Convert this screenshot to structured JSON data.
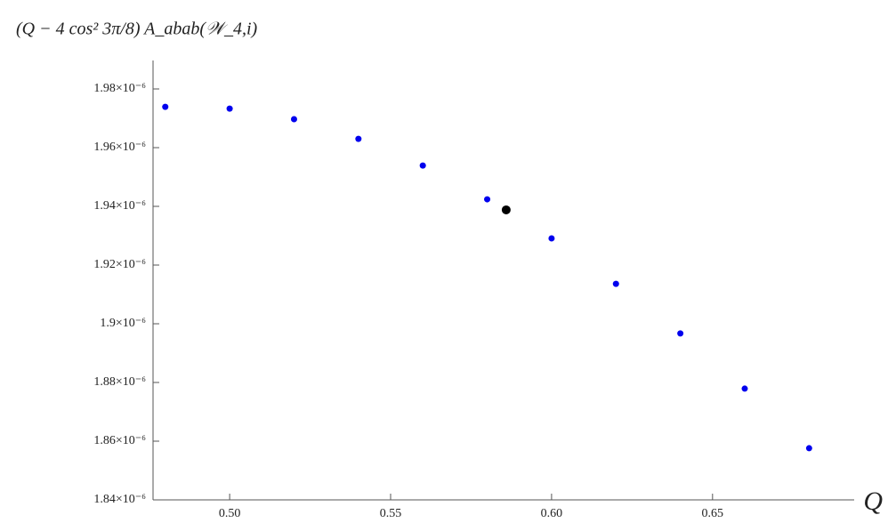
{
  "chart_data": {
    "type": "scatter",
    "y_label": "(Q − 4 cos² 3π/8) A_abab(𝒲_4,i)",
    "x_label": "Q",
    "xlim": [
      0.4762,
      0.694
    ],
    "ylim": [
      1.84e-06,
      1.9897e-06
    ],
    "xticks": [
      {
        "value": 0.5,
        "label": "0.50"
      },
      {
        "value": 0.55,
        "label": "0.55"
      },
      {
        "value": 0.6,
        "label": "0.60"
      },
      {
        "value": 0.65,
        "label": "0.65"
      }
    ],
    "yticks": [
      {
        "value": 1.84e-06,
        "label": "1.84×10⁻⁶"
      },
      {
        "value": 1.86e-06,
        "label": "1.86×10⁻⁶"
      },
      {
        "value": 1.88e-06,
        "label": "1.88×10⁻⁶"
      },
      {
        "value": 1.9e-06,
        "label": "1.9×10⁻⁶"
      },
      {
        "value": 1.92e-06,
        "label": "1.92×10⁻⁶"
      },
      {
        "value": 1.94e-06,
        "label": "1.94×10⁻⁶"
      },
      {
        "value": 1.96e-06,
        "label": "1.96×10⁻⁶"
      },
      {
        "value": 1.98e-06,
        "label": "1.98×10⁻⁶"
      }
    ],
    "series": [
      {
        "color": "#0000ee",
        "size": 3.5,
        "x": [
          0.48,
          0.5,
          0.52,
          0.54,
          0.56,
          0.58,
          0.6,
          0.62,
          0.64,
          0.66,
          0.68
        ],
        "values": [
          1.9739e-06,
          1.9733e-06,
          1.9697e-06,
          1.963e-06,
          1.9539e-06,
          1.9424e-06,
          1.9291e-06,
          1.9136e-06,
          1.8967e-06,
          1.8779e-06,
          1.8576e-06
        ]
      },
      {
        "color": "#000000",
        "size": 5,
        "x": [
          0.5859
        ],
        "values": [
          1.9388e-06
        ]
      }
    ]
  }
}
